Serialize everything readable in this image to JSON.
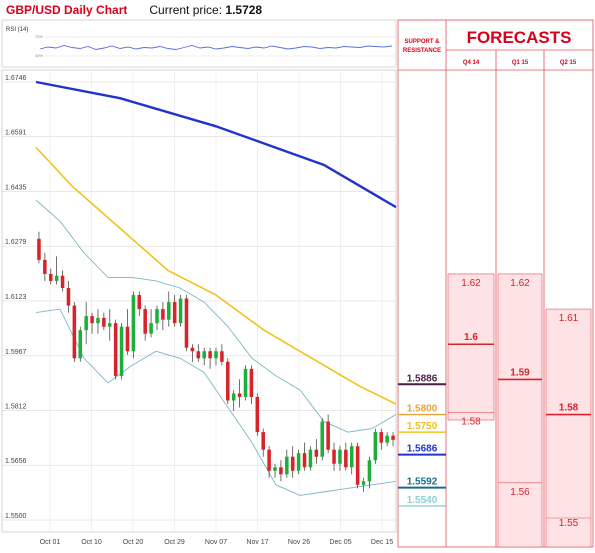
{
  "header": {
    "title": "GBP/USD Daily Chart",
    "current_price_label": "Current price:",
    "current_price": "1.5728"
  },
  "rsi_panel": {
    "label": "RSI (14)",
    "upper": "70%",
    "lower": "30%"
  },
  "forecast_panel": {
    "support_resistance_label_line1": "SUPPORT &",
    "support_resistance_label_line2": "RESISTANCE",
    "title": "FORECASTS",
    "columns": [
      "Q4 14",
      "Q1 15",
      "Q2 15"
    ]
  },
  "colors": {
    "title_red": "#d9001b",
    "candle_up": "#1fae3a",
    "candle_down": "#d8232a",
    "sma_blue": "#2233cc",
    "sma_yellow": "#f2c21b",
    "bollinger": "#7ab8c4",
    "forecast_fill": "#fde3e6",
    "forecast_line": "#d8232a",
    "grid_red": "#e6505a"
  },
  "chart_data": {
    "type": "candlestick",
    "title": "GBP/USD Daily Chart",
    "y_ticks": [
      "1.6746",
      "1.6591",
      "1.6435",
      "1.6279",
      "1.6123",
      "1.5967",
      "1.5812",
      "1.5656",
      "1.5500"
    ],
    "ylim": [
      1.55,
      1.6746
    ],
    "x_ticks": [
      "Oct 01",
      "Oct 10",
      "Oct 20",
      "Oct 29",
      "Nov 07",
      "Nov 17",
      "Nov 26",
      "Dec 05",
      "Dec 15"
    ],
    "candles": [
      {
        "o": 1.63,
        "h": 1.632,
        "l": 1.623,
        "c": 1.624
      },
      {
        "o": 1.624,
        "h": 1.626,
        "l": 1.618,
        "c": 1.62
      },
      {
        "o": 1.62,
        "h": 1.6215,
        "l": 1.617,
        "c": 1.618
      },
      {
        "o": 1.618,
        "h": 1.625,
        "l": 1.617,
        "c": 1.6195
      },
      {
        "o": 1.6195,
        "h": 1.621,
        "l": 1.615,
        "c": 1.616
      },
      {
        "o": 1.616,
        "h": 1.618,
        "l": 1.609,
        "c": 1.611
      },
      {
        "o": 1.611,
        "h": 1.612,
        "l": 1.595,
        "c": 1.596
      },
      {
        "o": 1.596,
        "h": 1.605,
        "l": 1.595,
        "c": 1.604
      },
      {
        "o": 1.604,
        "h": 1.612,
        "l": 1.6,
        "c": 1.608
      },
      {
        "o": 1.608,
        "h": 1.609,
        "l": 1.603,
        "c": 1.606
      },
      {
        "o": 1.606,
        "h": 1.61,
        "l": 1.603,
        "c": 1.6075
      },
      {
        "o": 1.6075,
        "h": 1.609,
        "l": 1.604,
        "c": 1.605
      },
      {
        "o": 1.605,
        "h": 1.61,
        "l": 1.601,
        "c": 1.606
      },
      {
        "o": 1.606,
        "h": 1.607,
        "l": 1.59,
        "c": 1.591
      },
      {
        "o": 1.591,
        "h": 1.606,
        "l": 1.59,
        "c": 1.605
      },
      {
        "o": 1.605,
        "h": 1.61,
        "l": 1.597,
        "c": 1.598
      },
      {
        "o": 1.598,
        "h": 1.615,
        "l": 1.596,
        "c": 1.614
      },
      {
        "o": 1.614,
        "h": 1.615,
        "l": 1.608,
        "c": 1.61
      },
      {
        "o": 1.61,
        "h": 1.611,
        "l": 1.601,
        "c": 1.603
      },
      {
        "o": 1.603,
        "h": 1.61,
        "l": 1.602,
        "c": 1.606
      },
      {
        "o": 1.606,
        "h": 1.611,
        "l": 1.604,
        "c": 1.61
      },
      {
        "o": 1.61,
        "h": 1.612,
        "l": 1.604,
        "c": 1.607
      },
      {
        "o": 1.607,
        "h": 1.615,
        "l": 1.605,
        "c": 1.612
      },
      {
        "o": 1.612,
        "h": 1.614,
        "l": 1.605,
        "c": 1.606
      },
      {
        "o": 1.606,
        "h": 1.614,
        "l": 1.605,
        "c": 1.613
      },
      {
        "o": 1.613,
        "h": 1.614,
        "l": 1.598,
        "c": 1.599
      },
      {
        "o": 1.599,
        "h": 1.6,
        "l": 1.595,
        "c": 1.598
      },
      {
        "o": 1.598,
        "h": 1.6,
        "l": 1.595,
        "c": 1.596
      },
      {
        "o": 1.596,
        "h": 1.599,
        "l": 1.594,
        "c": 1.598
      },
      {
        "o": 1.598,
        "h": 1.599,
        "l": 1.593,
        "c": 1.596
      },
      {
        "o": 1.596,
        "h": 1.599,
        "l": 1.594,
        "c": 1.598
      },
      {
        "o": 1.598,
        "h": 1.6,
        "l": 1.594,
        "c": 1.595
      },
      {
        "o": 1.595,
        "h": 1.596,
        "l": 1.583,
        "c": 1.584
      },
      {
        "o": 1.584,
        "h": 1.587,
        "l": 1.581,
        "c": 1.586
      },
      {
        "o": 1.586,
        "h": 1.59,
        "l": 1.582,
        "c": 1.585
      },
      {
        "o": 1.585,
        "h": 1.594,
        "l": 1.584,
        "c": 1.593
      },
      {
        "o": 1.593,
        "h": 1.594,
        "l": 1.583,
        "c": 1.585
      },
      {
        "o": 1.585,
        "h": 1.586,
        "l": 1.574,
        "c": 1.575
      },
      {
        "o": 1.575,
        "h": 1.576,
        "l": 1.568,
        "c": 1.57
      },
      {
        "o": 1.57,
        "h": 1.571,
        "l": 1.562,
        "c": 1.564
      },
      {
        "o": 1.564,
        "h": 1.566,
        "l": 1.562,
        "c": 1.565
      },
      {
        "o": 1.565,
        "h": 1.567,
        "l": 1.561,
        "c": 1.563
      },
      {
        "o": 1.563,
        "h": 1.57,
        "l": 1.562,
        "c": 1.568
      },
      {
        "o": 1.568,
        "h": 1.571,
        "l": 1.562,
        "c": 1.564
      },
      {
        "o": 1.564,
        "h": 1.57,
        "l": 1.563,
        "c": 1.569
      },
      {
        "o": 1.569,
        "h": 1.572,
        "l": 1.564,
        "c": 1.565
      },
      {
        "o": 1.565,
        "h": 1.571,
        "l": 1.564,
        "c": 1.57
      },
      {
        "o": 1.57,
        "h": 1.573,
        "l": 1.566,
        "c": 1.568
      },
      {
        "o": 1.568,
        "h": 1.579,
        "l": 1.567,
        "c": 1.578
      },
      {
        "o": 1.578,
        "h": 1.58,
        "l": 1.569,
        "c": 1.57
      },
      {
        "o": 1.57,
        "h": 1.572,
        "l": 1.564,
        "c": 1.566
      },
      {
        "o": 1.566,
        "h": 1.571,
        "l": 1.564,
        "c": 1.57
      },
      {
        "o": 1.57,
        "h": 1.572,
        "l": 1.564,
        "c": 1.565
      },
      {
        "o": 1.565,
        "h": 1.572,
        "l": 1.563,
        "c": 1.571
      },
      {
        "o": 1.571,
        "h": 1.572,
        "l": 1.559,
        "c": 1.56
      },
      {
        "o": 1.56,
        "h": 1.562,
        "l": 1.558,
        "c": 1.561
      },
      {
        "o": 1.561,
        "h": 1.568,
        "l": 1.559,
        "c": 1.567
      },
      {
        "o": 1.567,
        "h": 1.576,
        "l": 1.566,
        "c": 1.575
      },
      {
        "o": 1.575,
        "h": 1.576,
        "l": 1.57,
        "c": 1.572
      },
      {
        "o": 1.572,
        "h": 1.575,
        "l": 1.571,
        "c": 1.574
      },
      {
        "o": 1.574,
        "h": 1.575,
        "l": 1.571,
        "c": 1.5728
      }
    ],
    "series": [
      {
        "name": "",
        "color": "#2233cc",
        "values": [
          [
            0,
            1.6746
          ],
          [
            14,
            1.67
          ],
          [
            30,
            1.662
          ],
          [
            48,
            1.651
          ],
          [
            60,
            1.639
          ]
        ]
      },
      {
        "name": "",
        "color": "#f2c21b",
        "values": [
          [
            0,
            1.656
          ],
          [
            6,
            1.645
          ],
          [
            14,
            1.633
          ],
          [
            22,
            1.621
          ],
          [
            30,
            1.614
          ],
          [
            38,
            1.604
          ],
          [
            46,
            1.596
          ],
          [
            54,
            1.588
          ],
          [
            60,
            1.583
          ]
        ]
      },
      {
        "name": "",
        "color": "#7ab8c4",
        "values": [
          [
            0,
            1.641
          ],
          [
            4,
            1.635
          ],
          [
            8,
            1.626
          ],
          [
            12,
            1.619
          ],
          [
            16,
            1.619
          ],
          [
            20,
            1.618
          ],
          [
            24,
            1.616
          ],
          [
            28,
            1.612
          ],
          [
            32,
            1.605
          ],
          [
            36,
            1.596
          ],
          [
            40,
            1.591
          ],
          [
            44,
            1.587
          ],
          [
            48,
            1.578
          ],
          [
            52,
            1.575
          ],
          [
            56,
            1.576
          ],
          [
            60,
            1.58
          ]
        ]
      },
      {
        "name": "",
        "color": "#7ab8c4",
        "values": [
          [
            0,
            1.609
          ],
          [
            4,
            1.61
          ],
          [
            8,
            1.596
          ],
          [
            12,
            1.589
          ],
          [
            16,
            1.594
          ],
          [
            20,
            1.598
          ],
          [
            24,
            1.596
          ],
          [
            28,
            1.592
          ],
          [
            32,
            1.582
          ],
          [
            36,
            1.572
          ],
          [
            40,
            1.56
          ],
          [
            44,
            1.557
          ],
          [
            48,
            1.558
          ],
          [
            52,
            1.559
          ],
          [
            56,
            1.56
          ],
          [
            60,
            1.561
          ]
        ]
      }
    ],
    "rsi": [
      48,
      52,
      50,
      55,
      51,
      49,
      53,
      47,
      50,
      54,
      49,
      52,
      48,
      51,
      50,
      53,
      49,
      47,
      51,
      55,
      50,
      52,
      48,
      50,
      53,
      51,
      49,
      52,
      50,
      54,
      51,
      48,
      50,
      53,
      52,
      49,
      51,
      50,
      53,
      52,
      51,
      54,
      53,
      52,
      54
    ],
    "support_resistance": [
      {
        "label": "1.5886",
        "value": 1.5886,
        "color": "#4a1f4a",
        "bold": true
      },
      {
        "label": "1.5800",
        "value": 1.58,
        "color": "#e6a23c",
        "bold": false
      },
      {
        "label": "1.5750",
        "value": 1.575,
        "color": "#f2c21b",
        "bold": false
      },
      {
        "label": "1.5686",
        "value": 1.5686,
        "color": "#2233cc",
        "bold": true
      },
      {
        "label": "1.5592",
        "value": 1.5592,
        "color": "#1a6b8a",
        "bold": true
      },
      {
        "label": "1.5540",
        "value": 1.554,
        "color": "#8fcfd8",
        "bold": false
      }
    ],
    "forecasts": [
      {
        "period": "Q4 14",
        "high": 1.62,
        "mid": 1.6,
        "low": 1.58,
        "high_label": "1.62",
        "mid_label": "1.6",
        "low_label": "1.58"
      },
      {
        "period": "Q1 15",
        "high": 1.62,
        "mid": 1.59,
        "low": 1.56,
        "high_label": "1.62",
        "mid_label": "1.59",
        "low_label": "1.56"
      },
      {
        "period": "Q2 15",
        "high": 1.61,
        "mid": 1.58,
        "low": 1.55,
        "high_label": "1.61",
        "mid_label": "1.58",
        "low_label": "1.55"
      }
    ]
  }
}
